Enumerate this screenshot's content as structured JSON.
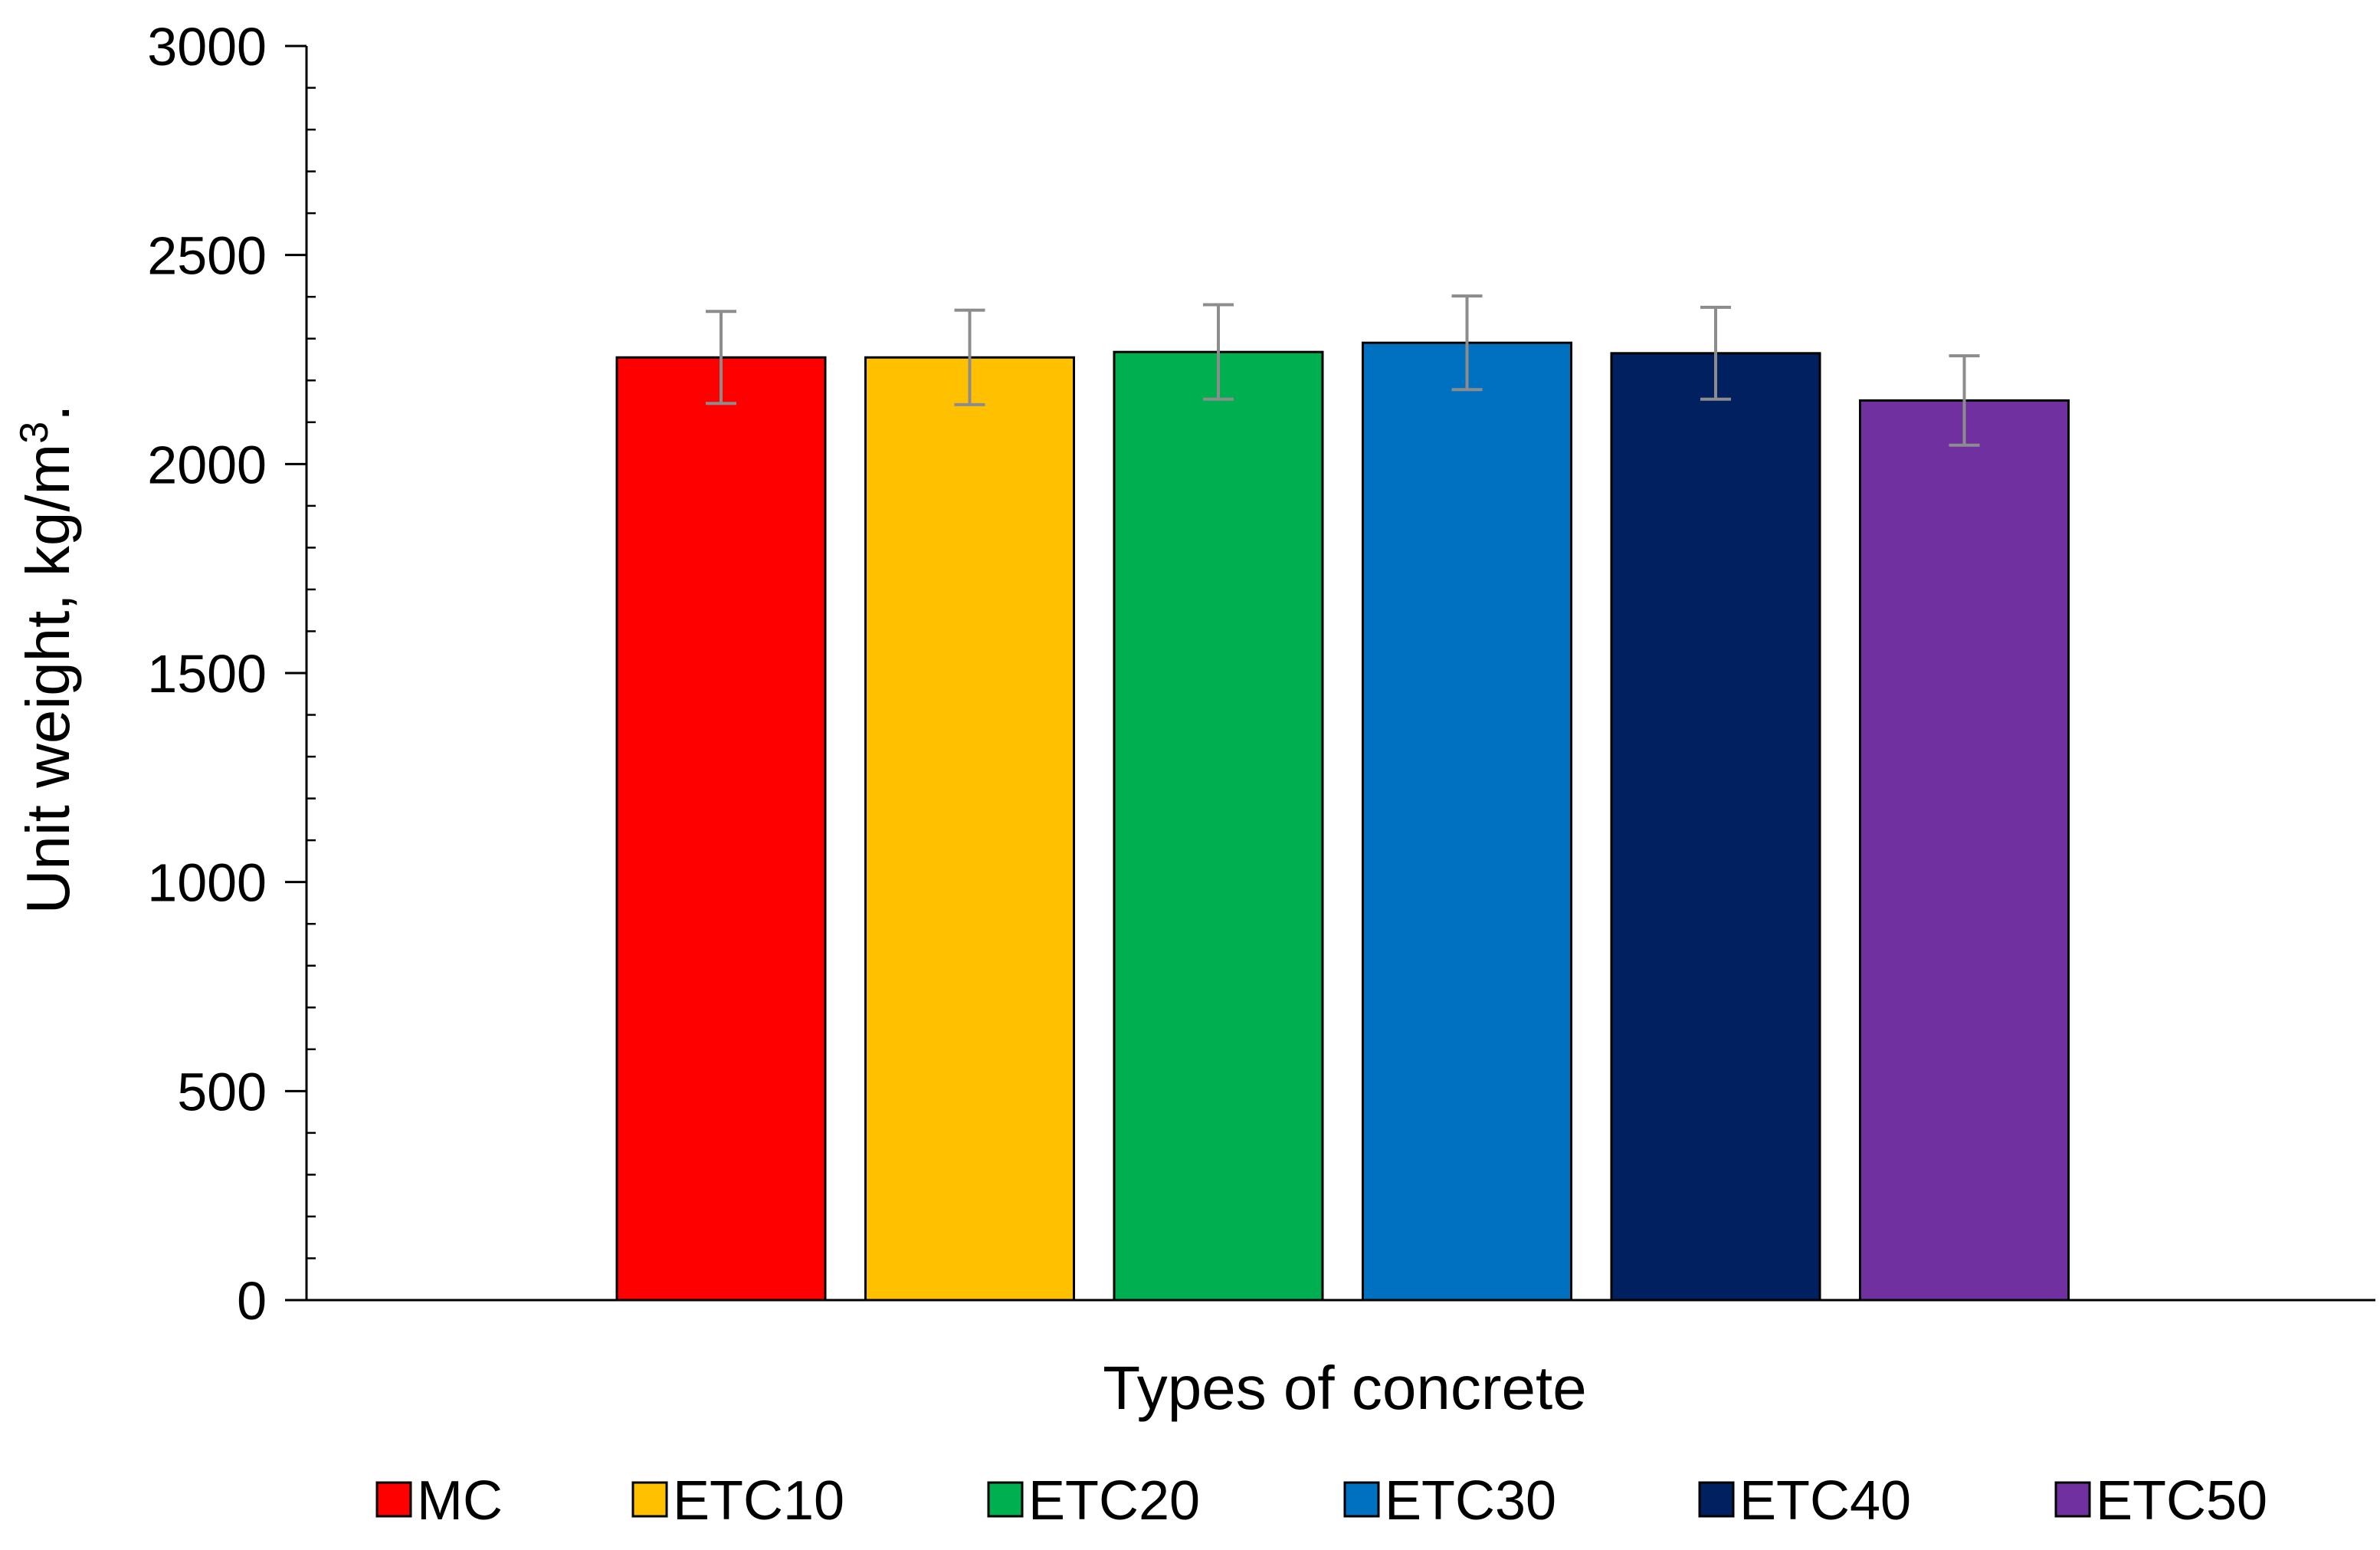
{
  "chart_data": {
    "type": "bar",
    "title": "",
    "xlabel": "Types of concrete",
    "ylabel": "Unit weight, kg/m",
    "ylabel_superscript": "3",
    "ylabel_suffix": ".",
    "ylim": [
      0,
      3000
    ],
    "yticks": [
      0,
      500,
      1000,
      1500,
      2000,
      2500,
      3000
    ],
    "minor_tick_step": 100,
    "grid": false,
    "legend_position": "bottom",
    "categories": [
      "MC",
      "ETC10",
      "ETC20",
      "ETC30",
      "ETC40",
      "ETC50"
    ],
    "values": [
      2255,
      2255,
      2268,
      2290,
      2265,
      2152
    ],
    "errors": [
      110,
      113,
      113,
      112,
      110,
      107
    ],
    "colors": [
      "#FF0000",
      "#FFC000",
      "#00B050",
      "#0070C0",
      "#002060",
      "#7030A0"
    ],
    "error_color": "#8C8C8C",
    "axis_color": "#000000"
  }
}
